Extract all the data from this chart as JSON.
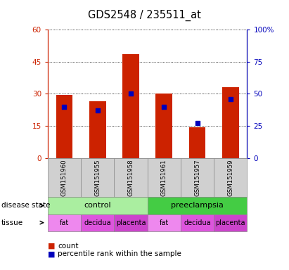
{
  "title": "GDS2548 / 235511_at",
  "samples": [
    "GSM151960",
    "GSM151955",
    "GSM151958",
    "GSM151961",
    "GSM151957",
    "GSM151959"
  ],
  "counts": [
    29.5,
    26.5,
    48.5,
    30.0,
    14.5,
    33.0
  ],
  "percentile_ranks": [
    40,
    37,
    50,
    40,
    27,
    46
  ],
  "disease_states": [
    "control",
    "control",
    "control",
    "preeclampsia",
    "preeclampsia",
    "preeclampsia"
  ],
  "tissues": [
    "fat",
    "decidua",
    "placenta",
    "fat",
    "decidua",
    "placenta"
  ],
  "bar_color": "#cc2200",
  "percentile_color": "#0000bb",
  "ylim_left": [
    0,
    60
  ],
  "ylim_right": [
    0,
    100
  ],
  "yticks_left": [
    0,
    15,
    30,
    45,
    60
  ],
  "ytick_labels_left": [
    "0",
    "15",
    "30",
    "45",
    "60"
  ],
  "yticks_right": [
    0,
    25,
    50,
    75,
    100
  ],
  "ytick_labels_right": [
    "0",
    "25",
    "50",
    "75",
    "100%"
  ],
  "control_color": "#aaeea0",
  "preeclampsia_color": "#44cc44",
  "fat_color": "#ee88ee",
  "decidua_color": "#dd55dd",
  "placenta_color": "#cc44cc",
  "left_axis_color": "#cc2200",
  "right_axis_color": "#0000bb",
  "sample_bg_color": "#d0d0d0",
  "bar_width": 0.5
}
